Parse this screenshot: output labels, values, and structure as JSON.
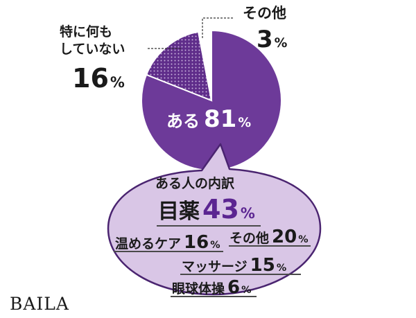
{
  "chart_data": [
    {
      "type": "pie",
      "slices": [
        {
          "label": "ある",
          "value": 81
        },
        {
          "label": "特に何もしていない",
          "value": 16
        },
        {
          "label": "その他",
          "value": 3
        }
      ],
      "unit": "%"
    },
    {
      "type": "bar",
      "title": "ある人の内訳",
      "categories": [
        "目薬",
        "温めるケア",
        "その他",
        "マッサージ",
        "眼球体操"
      ],
      "values": [
        43,
        16,
        20,
        15,
        6
      ],
      "unit": "%"
    }
  ],
  "labels": {
    "nothing_line1": "特に何も",
    "nothing_line2": "していない",
    "percent_sign": "%"
  },
  "colors": {
    "pie_main": "#6d3a99",
    "pie_dotted": "#5f2d8a",
    "other_slice": "#ffffff",
    "bubble_fill": "#d9c6e6",
    "bubble_stroke": "#4a2470",
    "accent": "#5b2591"
  },
  "brand": "BAILA"
}
